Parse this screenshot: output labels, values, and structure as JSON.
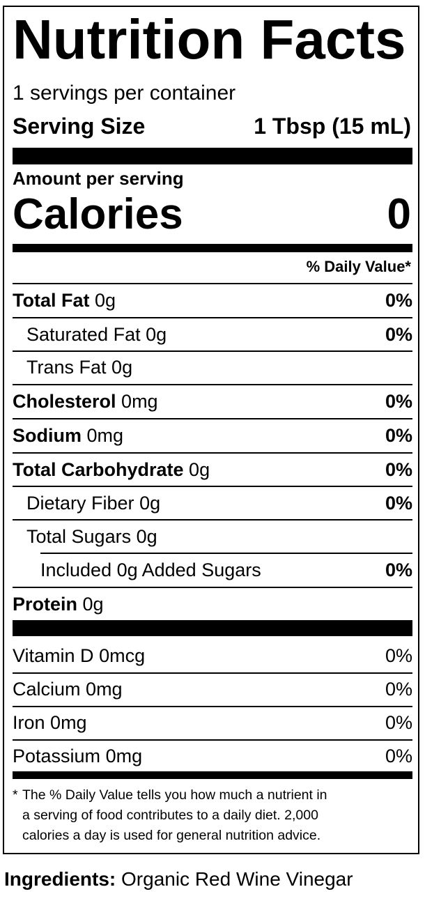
{
  "title": "Nutrition Facts",
  "servings": "1 servings per container",
  "serving_size": {
    "label": "Serving Size",
    "value": "1 Tbsp (15 mL)"
  },
  "amount_per_serving": "Amount per serving",
  "calories": {
    "label": "Calories",
    "value": 0
  },
  "daily_value_header": "% Daily Value*",
  "nutrients": [
    {
      "name": "Total Fat",
      "amount": "0g",
      "daily_value": "0%"
    },
    {
      "name": "Saturated Fat",
      "amount": "0g",
      "daily_value": "0%"
    },
    {
      "name": "Trans Fat",
      "amount": "0g"
    },
    {
      "name": "Cholesterol",
      "amount": "0mg",
      "daily_value": "0%"
    },
    {
      "name": "Sodium",
      "amount": "0mg",
      "daily_value": "0%"
    },
    {
      "name": "Total Carbohydrate",
      "amount": "0g",
      "daily_value": "0%"
    },
    {
      "name": "Dietary Fiber",
      "amount": "0g",
      "daily_value": "0%"
    },
    {
      "name": "Total Sugars",
      "amount": "0g"
    },
    {
      "name": "Included 0g Added Sugars",
      "daily_value": "0%"
    },
    {
      "name": "Protein",
      "amount": "0g"
    }
  ],
  "vitamins": [
    {
      "name": "Vitamin D",
      "amount": "0mcg",
      "daily_value": "0%"
    },
    {
      "name": "Calcium",
      "amount": "0mg",
      "daily_value": "0%"
    },
    {
      "name": "Iron",
      "amount": "0mg",
      "daily_value": "0%"
    },
    {
      "name": "Potassium",
      "amount": "0mg",
      "daily_value": "0%"
    }
  ],
  "footnote": {
    "mark": "*",
    "lines": [
      "The % Daily Value tells you how much a nutrient in",
      "a serving of food contributes to a daily diet. 2,000",
      "calories a day is used for general nutrition advice."
    ]
  },
  "ingredients": {
    "label": "Ingredients:",
    "text": "Organic Red Wine Vinegar"
  }
}
